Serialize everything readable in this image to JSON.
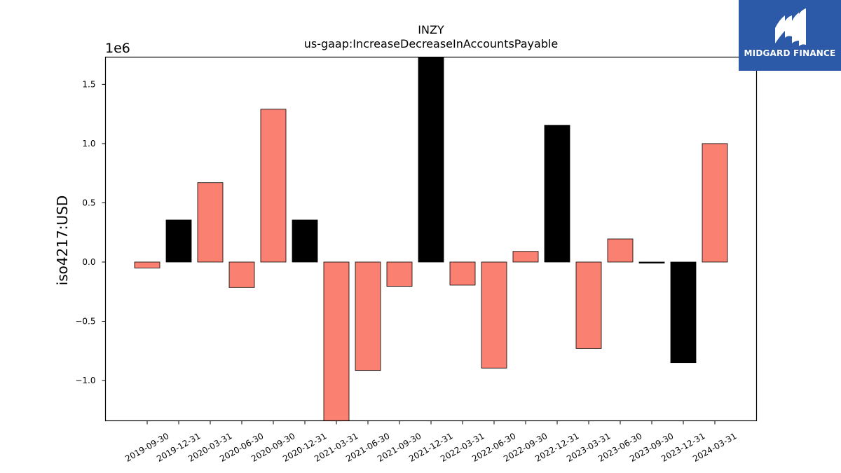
{
  "chart_data": {
    "type": "bar",
    "title": "INZY",
    "subtitle": "us-gaap:IncreaseDecreaseInAccountsPayable",
    "ylabel": "iso4217:USD",
    "xlabel": "",
    "y_offset_label": "1e6",
    "ylim": [
      -1.34,
      1.73
    ],
    "y_ticks": [
      -1.0,
      -0.5,
      0.0,
      0.5,
      1.0,
      1.5
    ],
    "y_tick_labels": [
      "−1.0",
      "−0.5",
      "0.0",
      "0.5",
      "1.0",
      "1.5"
    ],
    "categories": [
      "2019-09-30",
      "2019-12-31",
      "2020-03-31",
      "2020-06-30",
      "2020-09-30",
      "2020-12-31",
      "2021-03-31",
      "2021-06-30",
      "2021-09-30",
      "2021-12-31",
      "2022-03-31",
      "2022-06-30",
      "2022-09-30",
      "2022-12-31",
      "2023-03-31",
      "2023-06-30",
      "2023-09-30",
      "2023-12-31",
      "2024-03-31"
    ],
    "values": [
      -0.05,
      0.355,
      0.67,
      -0.215,
      1.29,
      0.355,
      -1.35,
      -0.915,
      -0.205,
      1.73,
      -0.195,
      -0.895,
      0.09,
      1.155,
      -0.73,
      0.195,
      -0.005,
      -0.85,
      1.0
    ],
    "bar_colors": [
      "#fa8072",
      "#000000",
      "#fa8072",
      "#fa8072",
      "#fa8072",
      "#000000",
      "#fa8072",
      "#fa8072",
      "#fa8072",
      "#000000",
      "#fa8072",
      "#fa8072",
      "#fa8072",
      "#000000",
      "#fa8072",
      "#fa8072",
      "#000000",
      "#000000",
      "#fa8072"
    ],
    "grid": false
  },
  "logo": {
    "text": "MIDGARD FINANCE",
    "background": "#2d5aa8"
  }
}
